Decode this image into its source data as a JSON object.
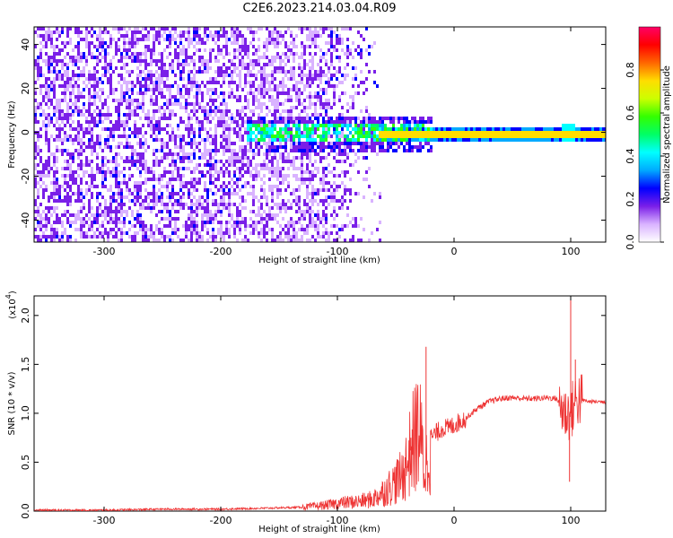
{
  "title": "C2E6.2023.214.03.04.R09",
  "chart_data": [
    {
      "type": "heatmap",
      "xlabel": "Height of straight line (km)",
      "ylabel": "Frequency (Hz)",
      "xlim": [
        -360,
        130
      ],
      "ylim": [
        -50,
        48
      ],
      "xticks": [
        -300,
        -200,
        -100,
        0,
        100
      ],
      "yticks": [
        -40,
        -20,
        0,
        20,
        40
      ],
      "colorbar": {
        "label": "Normalized spectral amplitude",
        "range": [
          0.0,
          1.0
        ],
        "ticks": [
          0.0,
          0.2,
          0.4,
          0.6,
          0.8
        ],
        "colors": [
          "#ffffff",
          "#d9b3ff",
          "#7a1fe8",
          "#0000ff",
          "#00aaff",
          "#00ffff",
          "#00ff66",
          "#33ff00",
          "#ccff00",
          "#ffdd00",
          "#ff6600",
          "#ff0000",
          "#ff0066"
        ]
      },
      "features": {
        "noise_region_x": [
          -360,
          -120
        ],
        "carrier_frequency_hz": 0,
        "carrier_start_x": -65,
        "carrier_end_x": 130,
        "spread_region_x": [
          -180,
          -30
        ],
        "secondary_spot_x": 97
      }
    },
    {
      "type": "line",
      "xlabel": "Height of straight line (km)",
      "ylabel": "SNR (10 * v/v)",
      "yscale_label": "(x10",
      "yscale_exp": "4",
      "yscale_close": ")",
      "xlim": [
        -360,
        130
      ],
      "ylim": [
        0,
        2.2
      ],
      "xticks": [
        -300,
        -200,
        -100,
        0,
        100
      ],
      "yticks": [
        0.0,
        0.5,
        1.0,
        1.5,
        2.0
      ],
      "ytick_labels": [
        "0.0",
        "0.5",
        "1.0",
        "1.5",
        "2.0"
      ],
      "color": "#ee3333",
      "series_points": [
        [
          -360,
          0.01
        ],
        [
          -300,
          0.01
        ],
        [
          -250,
          0.02
        ],
        [
          -200,
          0.02
        ],
        [
          -160,
          0.03
        ],
        [
          -130,
          0.04
        ],
        [
          -110,
          0.06
        ],
        [
          -100,
          0.08
        ],
        [
          -90,
          0.09
        ],
        [
          -80,
          0.1
        ],
        [
          -70,
          0.12
        ],
        [
          -60,
          0.2
        ],
        [
          -50,
          0.3
        ],
        [
          -45,
          0.35
        ],
        [
          -40,
          0.5
        ],
        [
          -35,
          0.7
        ],
        [
          -30,
          0.85
        ],
        [
          -25,
          0.4
        ],
        [
          -20,
          0.75
        ],
        [
          -15,
          0.8
        ],
        [
          -10,
          0.85
        ],
        [
          -5,
          0.85
        ],
        [
          0,
          0.88
        ],
        [
          10,
          0.95
        ],
        [
          20,
          1.05
        ],
        [
          30,
          1.12
        ],
        [
          40,
          1.15
        ],
        [
          50,
          1.16
        ],
        [
          60,
          1.15
        ],
        [
          70,
          1.15
        ],
        [
          80,
          1.16
        ],
        [
          88,
          1.15
        ],
        [
          95,
          1.0
        ],
        [
          100,
          1.0
        ],
        [
          105,
          1.15
        ],
        [
          115,
          1.12
        ],
        [
          130,
          1.12
        ]
      ],
      "spikes": [
        {
          "x": -24,
          "y": 1.68
        },
        {
          "x": 100,
          "y": 2.2
        },
        {
          "x": 99,
          "y": 0.3
        },
        {
          "x": 104,
          "y": 1.55
        },
        {
          "x": -42,
          "y": 0.55
        },
        {
          "x": -37,
          "y": 0.75
        }
      ]
    }
  ]
}
